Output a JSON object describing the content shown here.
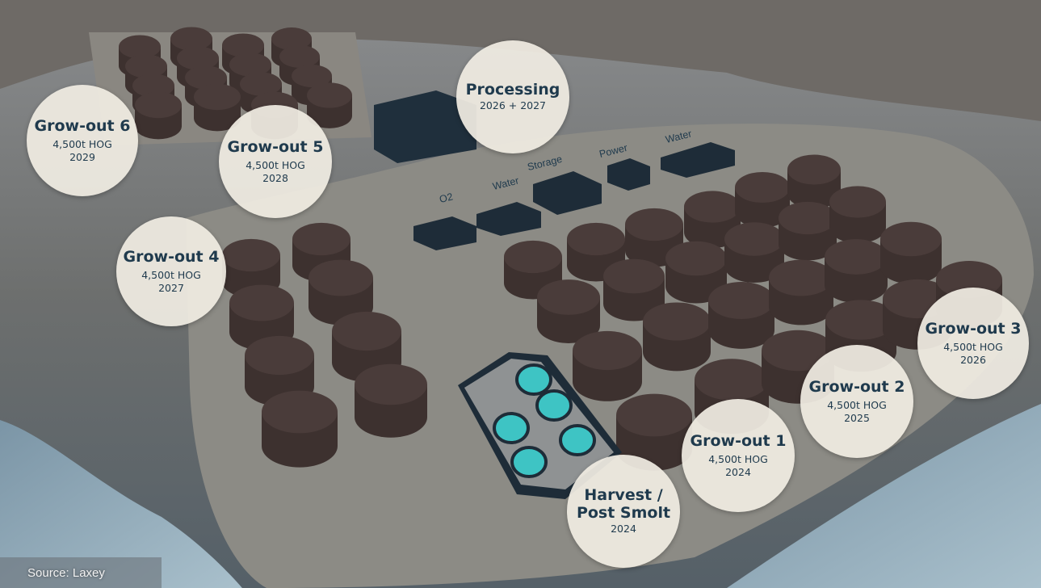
{
  "phases": [
    {
      "id": "grow-out-6",
      "title": "Grow-out 6",
      "capacity": "4,500t HOG",
      "year": "2029"
    },
    {
      "id": "grow-out-5",
      "title": "Grow-out 5",
      "capacity": "4,500t HOG",
      "year": "2028"
    },
    {
      "id": "processing",
      "title": "Processing",
      "capacity": "",
      "year": "2026 + 2027"
    },
    {
      "id": "grow-out-4",
      "title": "Grow-out 4",
      "capacity": "4,500t HOG",
      "year": "2027"
    },
    {
      "id": "grow-out-3",
      "title": "Grow-out 3",
      "capacity": "4,500t HOG",
      "year": "2026"
    },
    {
      "id": "grow-out-2",
      "title": "Grow-out 2",
      "capacity": "4,500t HOG",
      "year": "2025"
    },
    {
      "id": "grow-out-1",
      "title": "Grow-out 1",
      "capacity": "4,500t HOG",
      "year": "2024"
    },
    {
      "id": "harvest-post-smolt",
      "title": "Harvest /\nPost Smolt",
      "capacity": "",
      "year": "2024"
    }
  ],
  "facility_labels": {
    "o2": "O2",
    "water_1": "Water",
    "storage": "Storage",
    "power": "Power",
    "water_2": "Water"
  },
  "source": "Source: Laxey",
  "colors": {
    "badge_fill": "#f0ece2",
    "badge_text": "#1f3a4d",
    "tank": "#4a3c3a",
    "building": "#1f2f3c",
    "smolt_pool": "#3ec4c4"
  }
}
